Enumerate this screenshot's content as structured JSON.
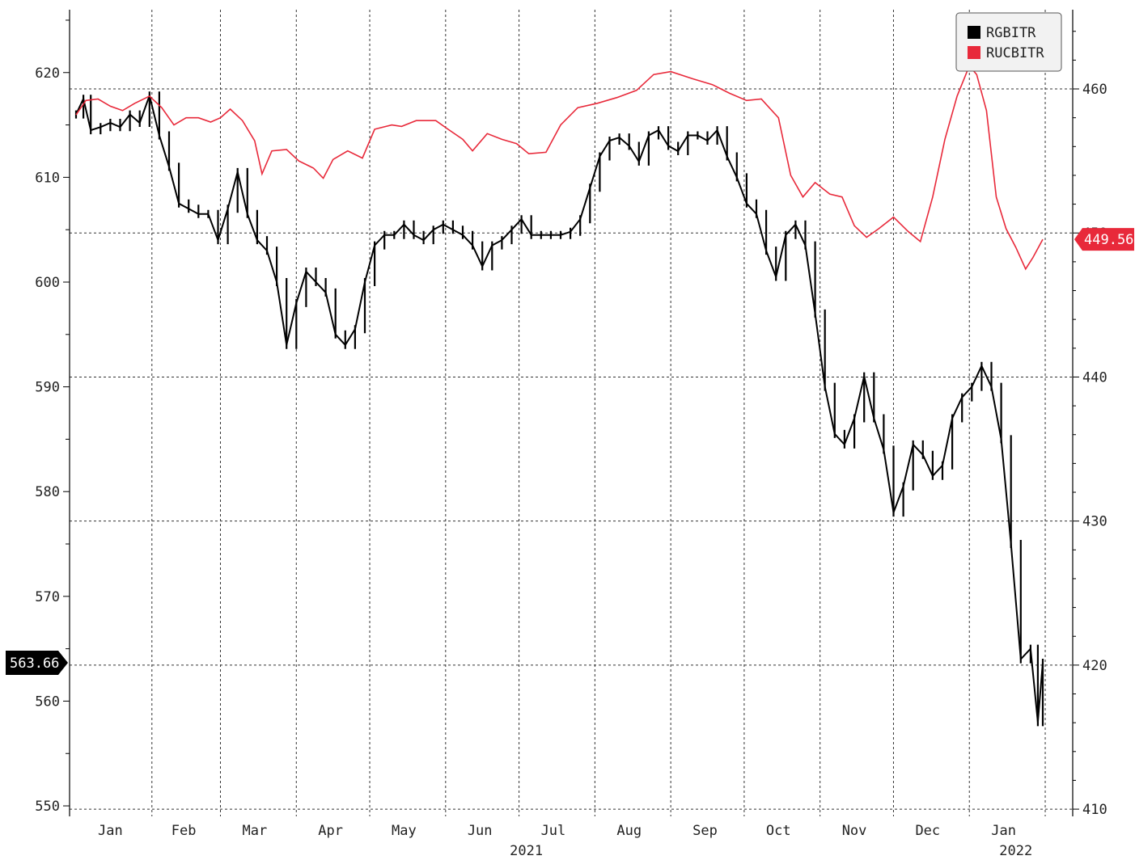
{
  "chart_data": {
    "type": "line",
    "grid": true,
    "legend_placement": "top-right",
    "x_range": [
      "2021-01-01",
      "2022-01-31"
    ],
    "y_left": {
      "range": [
        549,
        626
      ],
      "ticks": [
        550,
        560,
        570,
        580,
        590,
        600,
        610,
        620
      ]
    },
    "y_right": {
      "range": [
        409.5,
        465.5
      ],
      "ticks": [
        410,
        420,
        430,
        440,
        450,
        460
      ]
    },
    "month_labels": [
      {
        "label": "Jan",
        "date": "2021-01-15"
      },
      {
        "label": "Feb",
        "date": "2021-02-14"
      },
      {
        "label": "Mar",
        "date": "2021-03-15"
      },
      {
        "label": "Apr",
        "date": "2021-04-15"
      },
      {
        "label": "May",
        "date": "2021-05-15"
      },
      {
        "label": "Jun",
        "date": "2021-06-15"
      },
      {
        "label": "Jul",
        "date": "2021-07-15"
      },
      {
        "label": "Aug",
        "date": "2021-08-15"
      },
      {
        "label": "Sep",
        "date": "2021-09-15"
      },
      {
        "label": "Oct",
        "date": "2021-10-15"
      },
      {
        "label": "Nov",
        "date": "2021-11-15"
      },
      {
        "label": "Dec",
        "date": "2021-12-15"
      },
      {
        "label": "Jan",
        "date": "2022-01-15"
      }
    ],
    "year_labels": [
      {
        "label": "2021",
        "date": "2021-07-04"
      },
      {
        "label": "2022",
        "date": "2022-01-20"
      }
    ],
    "series": [
      {
        "name": "RGBITR",
        "axis": "left",
        "color": "#000000",
        "points": [
          [
            "2021-01-01",
            616
          ],
          [
            "2021-01-04",
            617.5
          ],
          [
            "2021-01-07",
            614.5
          ],
          [
            "2021-01-11",
            614.8
          ],
          [
            "2021-01-15",
            615.2
          ],
          [
            "2021-01-19",
            614.8
          ],
          [
            "2021-01-23",
            616
          ],
          [
            "2021-01-27",
            615.2
          ],
          [
            "2021-01-31",
            617.8
          ],
          [
            "2021-02-04",
            614
          ],
          [
            "2021-02-08",
            611
          ],
          [
            "2021-02-12",
            607.5
          ],
          [
            "2021-02-16",
            607
          ],
          [
            "2021-02-20",
            606.5
          ],
          [
            "2021-02-24",
            606.5
          ],
          [
            "2021-02-28",
            604
          ],
          [
            "2021-03-04",
            607
          ],
          [
            "2021-03-08",
            610.5
          ],
          [
            "2021-03-12",
            606.5
          ],
          [
            "2021-03-16",
            604
          ],
          [
            "2021-03-20",
            603
          ],
          [
            "2021-03-24",
            600
          ],
          [
            "2021-03-28",
            594
          ],
          [
            "2021-04-01",
            598
          ],
          [
            "2021-04-05",
            601
          ],
          [
            "2021-04-09",
            600
          ],
          [
            "2021-04-13",
            599
          ],
          [
            "2021-04-17",
            595
          ],
          [
            "2021-04-21",
            594
          ],
          [
            "2021-04-25",
            595.5
          ],
          [
            "2021-04-29",
            600
          ],
          [
            "2021-05-03",
            603.5
          ],
          [
            "2021-05-07",
            604.5
          ],
          [
            "2021-05-11",
            604.5
          ],
          [
            "2021-05-15",
            605.5
          ],
          [
            "2021-05-19",
            604.5
          ],
          [
            "2021-05-23",
            604
          ],
          [
            "2021-05-27",
            605
          ],
          [
            "2021-05-31",
            605.5
          ],
          [
            "2021-06-04",
            605
          ],
          [
            "2021-06-08",
            604.5
          ],
          [
            "2021-06-12",
            603.5
          ],
          [
            "2021-06-16",
            601.5
          ],
          [
            "2021-06-20",
            603.5
          ],
          [
            "2021-06-24",
            604
          ],
          [
            "2021-06-28",
            605
          ],
          [
            "2021-07-02",
            606
          ],
          [
            "2021-07-06",
            604.5
          ],
          [
            "2021-07-10",
            604.5
          ],
          [
            "2021-07-14",
            604.5
          ],
          [
            "2021-07-18",
            604.5
          ],
          [
            "2021-07-22",
            604.8
          ],
          [
            "2021-07-26",
            606
          ],
          [
            "2021-07-30",
            609
          ],
          [
            "2021-08-03",
            612
          ],
          [
            "2021-08-07",
            613.5
          ],
          [
            "2021-08-11",
            613.8
          ],
          [
            "2021-08-15",
            613
          ],
          [
            "2021-08-19",
            611.5
          ],
          [
            "2021-08-23",
            614
          ],
          [
            "2021-08-27",
            614.5
          ],
          [
            "2021-08-31",
            613
          ],
          [
            "2021-09-04",
            612.5
          ],
          [
            "2021-09-08",
            614
          ],
          [
            "2021-09-12",
            614
          ],
          [
            "2021-09-16",
            613.5
          ],
          [
            "2021-09-20",
            614.5
          ],
          [
            "2021-09-24",
            612
          ],
          [
            "2021-09-28",
            610
          ],
          [
            "2021-10-02",
            607.5
          ],
          [
            "2021-10-06",
            606.5
          ],
          [
            "2021-10-10",
            603
          ],
          [
            "2021-10-14",
            600.5
          ],
          [
            "2021-10-18",
            604.5
          ],
          [
            "2021-10-22",
            605.5
          ],
          [
            "2021-10-26",
            603.5
          ],
          [
            "2021-10-30",
            597
          ],
          [
            "2021-11-03",
            590
          ],
          [
            "2021-11-07",
            585.5
          ],
          [
            "2021-11-11",
            584.5
          ],
          [
            "2021-11-15",
            587
          ],
          [
            "2021-11-19",
            591
          ],
          [
            "2021-11-23",
            587
          ],
          [
            "2021-11-27",
            584
          ],
          [
            "2021-12-01",
            578
          ],
          [
            "2021-12-05",
            580.5
          ],
          [
            "2021-12-09",
            584.5
          ],
          [
            "2021-12-13",
            583.5
          ],
          [
            "2021-12-17",
            581.5
          ],
          [
            "2021-12-21",
            582.5
          ],
          [
            "2021-12-25",
            587
          ],
          [
            "2021-12-29",
            589
          ],
          [
            "2022-01-02",
            590
          ],
          [
            "2022-01-06",
            592
          ],
          [
            "2022-01-10",
            590
          ],
          [
            "2022-01-14",
            585
          ],
          [
            "2022-01-18",
            575
          ],
          [
            "2022-01-22",
            564
          ],
          [
            "2022-01-26",
            565
          ],
          [
            "2022-01-29",
            558
          ],
          [
            "2022-01-31",
            563.66
          ]
        ]
      },
      {
        "name": "RUCBITR",
        "axis": "right",
        "color": "#e8293a",
        "points": [
          [
            "2021-01-01",
            458.2
          ],
          [
            "2021-01-05",
            459.2
          ],
          [
            "2021-01-10",
            459.3
          ],
          [
            "2021-01-15",
            458.8
          ],
          [
            "2021-01-20",
            458.5
          ],
          [
            "2021-01-25",
            459
          ],
          [
            "2021-01-31",
            459.5
          ],
          [
            "2021-02-05",
            458.7
          ],
          [
            "2021-02-10",
            457.5
          ],
          [
            "2021-02-15",
            458
          ],
          [
            "2021-02-20",
            458
          ],
          [
            "2021-02-25",
            457.7
          ],
          [
            "2021-03-01",
            458
          ],
          [
            "2021-03-05",
            458.6
          ],
          [
            "2021-03-10",
            457.8
          ],
          [
            "2021-03-15",
            456.4
          ],
          [
            "2021-03-18",
            454.1
          ],
          [
            "2021-03-22",
            455.7
          ],
          [
            "2021-03-28",
            455.8
          ],
          [
            "2021-04-02",
            455
          ],
          [
            "2021-04-08",
            454.5
          ],
          [
            "2021-04-12",
            453.8
          ],
          [
            "2021-04-16",
            455.1
          ],
          [
            "2021-04-22",
            455.7
          ],
          [
            "2021-04-28",
            455.2
          ],
          [
            "2021-05-03",
            457.2
          ],
          [
            "2021-05-10",
            457.5
          ],
          [
            "2021-05-14",
            457.4
          ],
          [
            "2021-05-20",
            457.8
          ],
          [
            "2021-05-28",
            457.8
          ],
          [
            "2021-06-02",
            457.2
          ],
          [
            "2021-06-08",
            456.5
          ],
          [
            "2021-06-12",
            455.7
          ],
          [
            "2021-06-18",
            456.9
          ],
          [
            "2021-06-24",
            456.5
          ],
          [
            "2021-06-30",
            456.2
          ],
          [
            "2021-07-05",
            455.5
          ],
          [
            "2021-07-12",
            455.6
          ],
          [
            "2021-07-18",
            457.5
          ],
          [
            "2021-07-25",
            458.7
          ],
          [
            "2021-08-02",
            459
          ],
          [
            "2021-08-10",
            459.4
          ],
          [
            "2021-08-18",
            459.9
          ],
          [
            "2021-08-25",
            461
          ],
          [
            "2021-09-01",
            461.2
          ],
          [
            "2021-09-10",
            460.7
          ],
          [
            "2021-09-18",
            460.3
          ],
          [
            "2021-09-25",
            459.7
          ],
          [
            "2021-10-02",
            459.2
          ],
          [
            "2021-10-08",
            459.3
          ],
          [
            "2021-10-15",
            458
          ],
          [
            "2021-10-20",
            454
          ],
          [
            "2021-10-25",
            452.5
          ],
          [
            "2021-10-30",
            453.5
          ],
          [
            "2021-11-05",
            452.7
          ],
          [
            "2021-11-10",
            452.5
          ],
          [
            "2021-11-15",
            450.5
          ],
          [
            "2021-11-20",
            449.7
          ],
          [
            "2021-11-25",
            450.3
          ],
          [
            "2021-12-01",
            451.1
          ],
          [
            "2021-12-07",
            450.1
          ],
          [
            "2021-12-12",
            449.4
          ],
          [
            "2021-12-17",
            452.5
          ],
          [
            "2021-12-22",
            456.5
          ],
          [
            "2021-12-27",
            459.5
          ],
          [
            "2022-01-01",
            461.6
          ],
          [
            "2022-01-04",
            461
          ],
          [
            "2022-01-08",
            458.5
          ],
          [
            "2022-01-12",
            452.5
          ],
          [
            "2022-01-16",
            450.3
          ],
          [
            "2022-01-20",
            449
          ],
          [
            "2022-01-24",
            447.5
          ],
          [
            "2022-01-27",
            448.3
          ],
          [
            "2022-01-31",
            449.56
          ]
        ]
      }
    ],
    "last_value_badges": [
      {
        "series": "RGBITR",
        "axis": "left",
        "value": 563.66,
        "label": "563.66",
        "color": "#000000"
      },
      {
        "series": "RUCBITR",
        "axis": "right",
        "value": 449.56,
        "label": "449.56",
        "color": "#e8293a"
      }
    ]
  }
}
